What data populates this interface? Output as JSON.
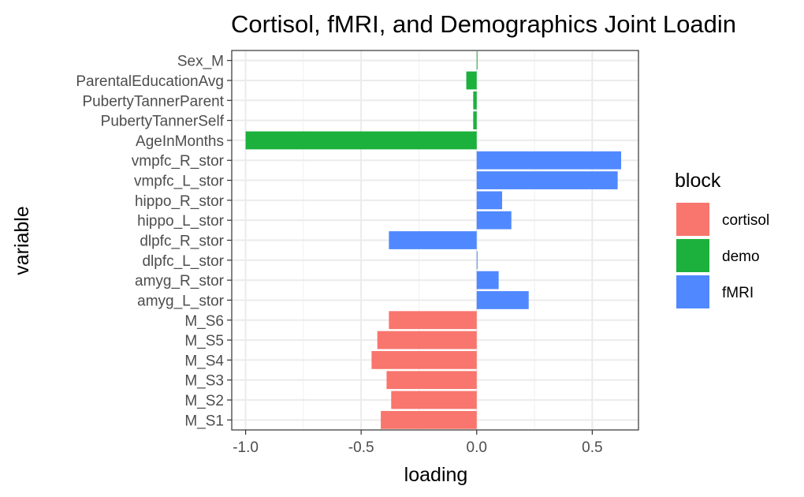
{
  "chart_data": {
    "type": "bar",
    "orientation": "horizontal",
    "title": "Cortisol, fMRI, and Demographics Joint Loadin",
    "xlabel": "loading",
    "ylabel": "variable",
    "xlim": [
      -1.06,
      0.7
    ],
    "xticks": [
      -1.0,
      -0.5,
      0.0,
      0.5
    ],
    "xtick_labels": [
      "-1.0",
      "-0.5",
      "0.0",
      "0.5"
    ],
    "grid": true,
    "legend": {
      "title": "block",
      "position": "right",
      "entries": [
        {
          "label": "cortisol",
          "color": "#F8766D"
        },
        {
          "label": "demo",
          "color": "#1BB13C"
        },
        {
          "label": "fMRI",
          "color": "#5089FF"
        }
      ]
    },
    "categories": [
      "M_S1",
      "M_S2",
      "M_S3",
      "M_S4",
      "M_S5",
      "M_S6",
      "amyg_L_stor",
      "amyg_R_stor",
      "dlpfc_L_stor",
      "dlpfc_R_stor",
      "hippo_L_stor",
      "hippo_R_stor",
      "vmpfc_L_stor",
      "vmpfc_R_stor",
      "AgeInMonths",
      "PubertyTannerSelf",
      "PubertyTannerParent",
      "ParentalEducationAvg",
      "Sex_M"
    ],
    "values": [
      -0.415,
      -0.37,
      -0.39,
      -0.455,
      -0.43,
      -0.38,
      0.225,
      0.095,
      0.002,
      -0.38,
      0.15,
      0.11,
      0.61,
      0.625,
      -1.0,
      -0.015,
      -0.015,
      -0.045,
      0.003
    ],
    "blocks": [
      "cortisol",
      "cortisol",
      "cortisol",
      "cortisol",
      "cortisol",
      "cortisol",
      "fMRI",
      "fMRI",
      "fMRI",
      "fMRI",
      "fMRI",
      "fMRI",
      "fMRI",
      "fMRI",
      "demo",
      "demo",
      "demo",
      "demo",
      "demo"
    ]
  }
}
